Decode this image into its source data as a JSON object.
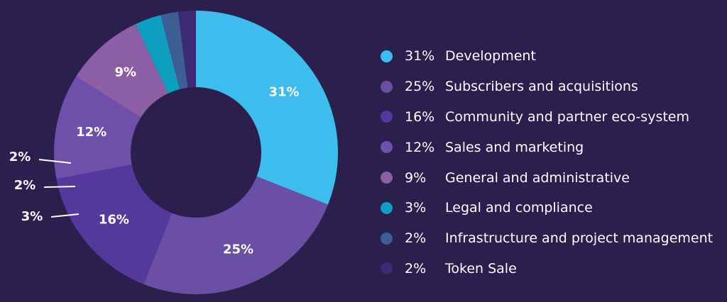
{
  "chart_data": {
    "type": "pie",
    "variant": "donut",
    "title": "",
    "slices": [
      {
        "label": "Development",
        "value": 31,
        "value_label": "31%",
        "color": "#3dbdee"
      },
      {
        "label": "Subscribers and acquisitions",
        "value": 25,
        "value_label": "25%",
        "color": "#6b4fa6"
      },
      {
        "label": "Community and partner eco-system",
        "value": 16,
        "value_label": "16%",
        "color": "#55389c"
      },
      {
        "label": "Sales and marketing",
        "value": 12,
        "value_label": "12%",
        "color": "#6e4fa9"
      },
      {
        "label": "General and administrative",
        "value": 9,
        "value_label": "9%",
        "color": "#8c5ea6"
      },
      {
        "label": "Legal and compliance",
        "value": 3,
        "value_label": "3%",
        "color": "#0e9ec0"
      },
      {
        "label": "Infrastructure and project management",
        "value": 2,
        "value_label": "2%",
        "color": "#3c5e92"
      },
      {
        "label": "Token Sale",
        "value": 2,
        "value_label": "2%",
        "color": "#3c2a77"
      }
    ],
    "legend_position": "right"
  }
}
